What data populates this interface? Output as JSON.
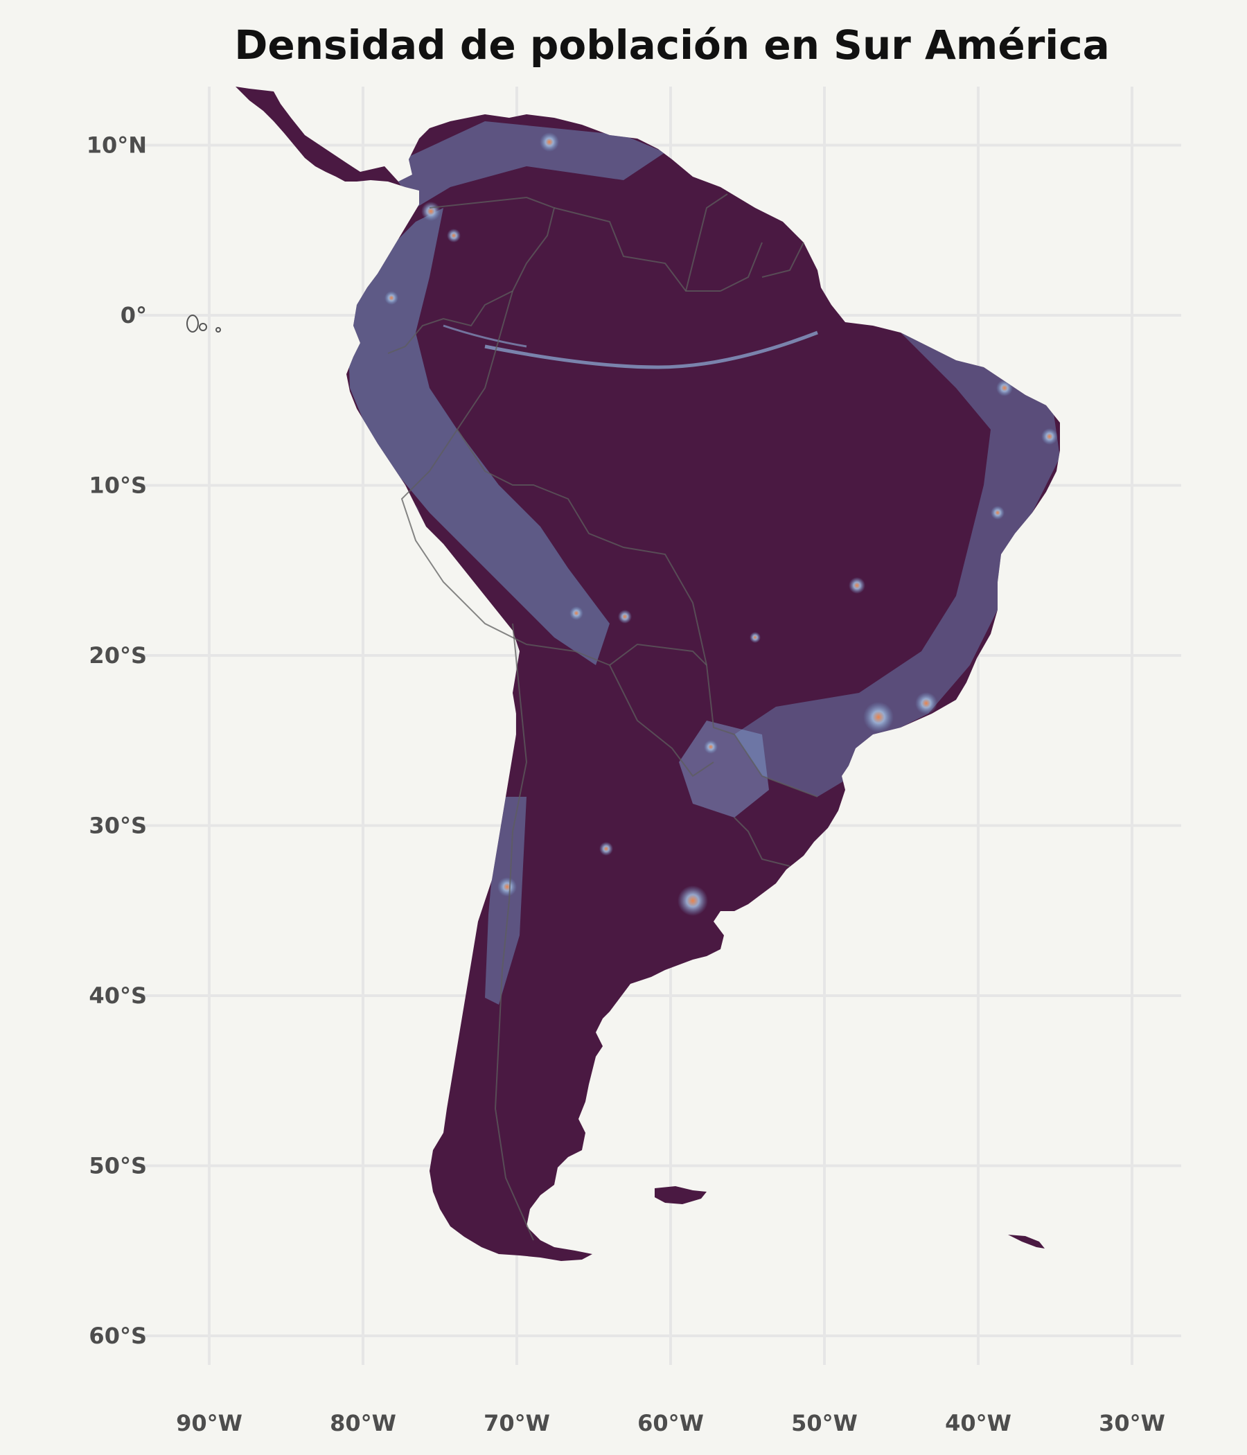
{
  "map": {
    "title": "Densidad de población en Sur América",
    "longitude_ticks": [
      "90°W",
      "80°W",
      "70°W",
      "60°W",
      "50°W",
      "40°W",
      "30°W"
    ],
    "latitude_ticks": [
      "10°N",
      "0°",
      "10°S",
      "20°S",
      "30°S",
      "40°S",
      "50°S",
      "60°S"
    ],
    "lon_values": [
      -90,
      -80,
      -70,
      -60,
      -50,
      -40,
      -30
    ],
    "lat_values": [
      10,
      0,
      -10,
      -20,
      -30,
      -40,
      -50,
      -60
    ],
    "extent": {
      "lon": [
        -94,
        -27
      ],
      "lat": [
        -63,
        13.5
      ]
    },
    "colors": {
      "background": "#f5f5f1",
      "land_low": "#4a1942",
      "land_mid": "#6f8fbf",
      "land_high": "#d9733a",
      "borders": "#5d5d5d",
      "grid": "#e6e6e6"
    }
  }
}
